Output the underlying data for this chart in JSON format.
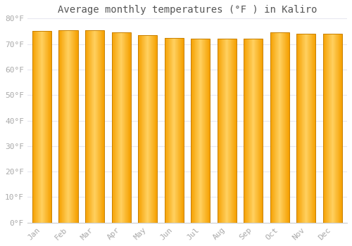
{
  "title": "Average monthly temperatures (°F ) in Kaliro",
  "months": [
    "Jan",
    "Feb",
    "Mar",
    "Apr",
    "May",
    "Jun",
    "Jul",
    "Aug",
    "Sep",
    "Oct",
    "Nov",
    "Dec"
  ],
  "values": [
    75.0,
    75.5,
    75.5,
    74.5,
    73.5,
    72.5,
    72.0,
    72.0,
    72.0,
    74.5,
    74.0,
    74.0
  ],
  "bar_color_center": "#FFD060",
  "bar_color_edge": "#F5A000",
  "bar_border_color": "#C88000",
  "background_color": "#FFFFFF",
  "grid_color": "#E8E8F0",
  "ylim": [
    0,
    80
  ],
  "yticks": [
    0,
    10,
    20,
    30,
    40,
    50,
    60,
    70,
    80
  ],
  "ytick_labels": [
    "0°F",
    "10°F",
    "20°F",
    "30°F",
    "40°F",
    "50°F",
    "60°F",
    "70°F",
    "80°F"
  ],
  "title_fontsize": 10,
  "tick_fontsize": 8,
  "tick_color": "#AAAAAA",
  "title_color": "#555555",
  "bar_width": 0.72
}
